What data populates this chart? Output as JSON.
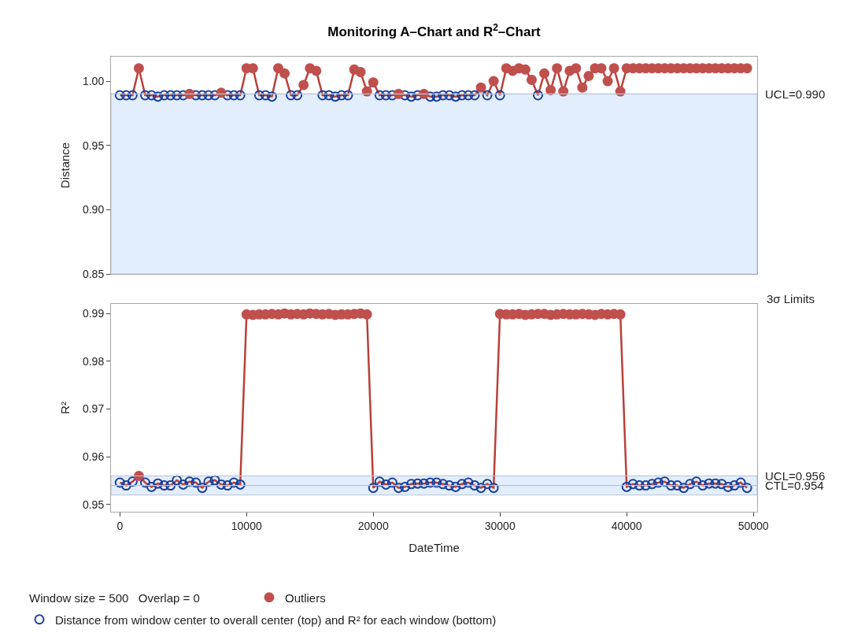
{
  "chart_data": [
    {
      "type": "line",
      "title": "Monitoring A–Chart and R$^{2}$–Chart",
      "ylabel": "Distance",
      "tick_labels": "y",
      "xlim": [
        -700,
        50300
      ],
      "ylim": [
        0.85,
        1.019
      ],
      "yticks": [
        {
          "value": 0.85,
          "label": "0.85"
        },
        {
          "value": 0.9,
          "label": "0.90"
        },
        {
          "value": 0.95,
          "label": "0.95"
        },
        {
          "value": 1.0,
          "label": "1.00"
        }
      ],
      "x": [
        0,
        500,
        1000,
        1500,
        2000,
        2500,
        3000,
        3500,
        4000,
        4500,
        5000,
        5500,
        6000,
        6500,
        7000,
        7500,
        8000,
        8500,
        9000,
        9500,
        10000,
        10500,
        11000,
        11500,
        12000,
        12500,
        13000,
        13500,
        14000,
        14500,
        15000,
        15500,
        16000,
        16500,
        17000,
        17500,
        18000,
        18500,
        19000,
        19500,
        20000,
        20500,
        21000,
        21500,
        22000,
        22500,
        23000,
        23500,
        24000,
        24500,
        25000,
        25500,
        26000,
        26500,
        27000,
        27500,
        28000,
        28500,
        29000,
        29500,
        30000,
        30500,
        31000,
        31500,
        32000,
        32500,
        33000,
        33500,
        34000,
        34500,
        35000,
        35500,
        36000,
        36500,
        37000,
        37500,
        38000,
        38500,
        39000,
        39500,
        40000,
        40500,
        41000,
        41500,
        42000,
        42500,
        43000,
        43500,
        44000,
        44500,
        45000,
        45500,
        46000,
        46500,
        47000,
        47500,
        48000,
        48500,
        49000,
        49500
      ],
      "bands": [
        {
          "axis": "y",
          "from": 0.85,
          "to": 0.99,
          "color": "#e3eefc"
        }
      ],
      "ref_lines": [
        {
          "axis": "y",
          "value": 0.99,
          "label": "UCL=0.990",
          "color": "#b7c4d6"
        }
      ],
      "series": [
        {
          "color": "#b8403a",
          "marker": "none",
          "values": [
            0.989,
            0.989,
            0.989,
            1.01,
            0.989,
            0.989,
            0.988,
            0.989,
            0.989,
            0.989,
            0.989,
            0.99,
            0.989,
            0.989,
            0.989,
            0.989,
            0.991,
            0.989,
            0.989,
            0.989,
            1.01,
            1.01,
            0.989,
            0.989,
            0.988,
            1.01,
            1.006,
            0.989,
            0.989,
            0.997,
            1.01,
            1.008,
            0.989,
            0.989,
            0.988,
            0.989,
            0.989,
            1.009,
            1.007,
            0.992,
            0.999,
            0.989,
            0.989,
            0.989,
            0.99,
            0.989,
            0.988,
            0.989,
            0.99,
            0.988,
            0.988,
            0.989,
            0.989,
            0.988,
            0.989,
            0.989,
            0.989,
            0.995,
            0.989,
            1.0,
            0.989,
            1.01,
            1.008,
            1.01,
            1.009,
            1.001,
            0.989,
            1.006,
            0.993,
            1.01,
            0.992,
            1.008,
            1.01,
            0.995,
            1.004,
            1.01,
            1.01,
            1.0,
            1.01,
            0.992,
            1.01,
            1.01,
            1.01,
            1.01,
            1.01,
            1.01,
            1.01,
            1.01,
            1.01,
            1.01,
            1.01,
            1.01,
            1.01,
            1.01,
            1.01,
            1.01,
            1.01,
            1.01,
            1.01,
            1.01
          ]
        },
        {
          "type": "scatter",
          "color": "#1a3f9c",
          "marker": "circle-open",
          "values": [
            0.989,
            0.989,
            0.989,
            null,
            0.989,
            0.989,
            0.988,
            0.989,
            0.989,
            0.989,
            0.989,
            null,
            0.989,
            0.989,
            0.989,
            0.989,
            null,
            0.989,
            0.989,
            0.989,
            null,
            null,
            0.989,
            0.989,
            0.988,
            null,
            null,
            0.989,
            0.989,
            null,
            null,
            null,
            0.989,
            0.989,
            0.988,
            0.989,
            0.989,
            null,
            null,
            null,
            null,
            0.989,
            0.989,
            0.989,
            null,
            0.989,
            0.988,
            0.989,
            null,
            0.988,
            0.988,
            0.989,
            0.989,
            0.988,
            0.989,
            0.989,
            0.989,
            null,
            0.989,
            null,
            0.989,
            null,
            null,
            null,
            null,
            null,
            0.989,
            null,
            null,
            null,
            null,
            null,
            null,
            null,
            null,
            null,
            null,
            null,
            null,
            null,
            null,
            null,
            null,
            null,
            null,
            null,
            null,
            null,
            null,
            null,
            null,
            null,
            null,
            null,
            null,
            null,
            null,
            null,
            null,
            null
          ]
        },
        {
          "type": "scatter",
          "color": "#c0504d",
          "marker": "circle",
          "values": [
            null,
            null,
            null,
            1.01,
            null,
            null,
            null,
            null,
            null,
            null,
            null,
            0.99,
            null,
            null,
            null,
            null,
            0.991,
            null,
            null,
            null,
            1.01,
            1.01,
            null,
            null,
            null,
            1.01,
            1.006,
            null,
            null,
            0.997,
            1.01,
            1.008,
            null,
            null,
            null,
            null,
            null,
            1.009,
            1.007,
            0.992,
            0.999,
            null,
            null,
            null,
            0.99,
            null,
            null,
            null,
            0.99,
            null,
            null,
            null,
            null,
            null,
            null,
            null,
            null,
            0.995,
            null,
            1.0,
            null,
            1.01,
            1.008,
            1.01,
            1.009,
            1.001,
            null,
            1.006,
            0.993,
            1.01,
            0.992,
            1.008,
            1.01,
            0.995,
            1.004,
            1.01,
            1.01,
            1.0,
            1.01,
            0.992,
            1.01,
            1.01,
            1.01,
            1.01,
            1.01,
            1.01,
            1.01,
            1.01,
            1.01,
            1.01,
            1.01,
            1.01,
            1.01,
            1.01,
            1.01,
            1.01,
            1.01,
            1.01,
            1.01,
            1.01
          ]
        }
      ]
    },
    {
      "type": "line",
      "xlabel": "DateTime",
      "ylabel": "R²",
      "legend": "bottom",
      "xlim": [
        -700,
        50300
      ],
      "ylim": [
        0.9485,
        0.992
      ],
      "xticks": [
        0,
        10000,
        20000,
        30000,
        40000,
        50000
      ],
      "yticks": [
        0.95,
        0.96,
        0.97,
        0.98,
        0.99
      ],
      "x": [
        0,
        500,
        1000,
        1500,
        2000,
        2500,
        3000,
        3500,
        4000,
        4500,
        5000,
        5500,
        6000,
        6500,
        7000,
        7500,
        8000,
        8500,
        9000,
        9500,
        10000,
        10500,
        11000,
        11500,
        12000,
        12500,
        13000,
        13500,
        14000,
        14500,
        15000,
        15500,
        16000,
        16500,
        17000,
        17500,
        18000,
        18500,
        19000,
        19500,
        20000,
        20500,
        21000,
        21500,
        22000,
        22500,
        23000,
        23500,
        24000,
        24500,
        25000,
        25500,
        26000,
        26500,
        27000,
        27500,
        28000,
        28500,
        29000,
        29500,
        30000,
        30500,
        31000,
        31500,
        32000,
        32500,
        33000,
        33500,
        34000,
        34500,
        35000,
        35500,
        36000,
        36500,
        37000,
        37500,
        38000,
        38500,
        39000,
        39500,
        40000,
        40500,
        41000,
        41500,
        42000,
        42500,
        43000,
        43500,
        44000,
        44500,
        45000,
        45500,
        46000,
        46500,
        47000,
        47500,
        48000,
        48500,
        49000,
        49500
      ],
      "bands": [
        {
          "axis": "y",
          "from": 0.952,
          "to": 0.956,
          "color": "#e3eefc"
        }
      ],
      "ref_lines": [
        {
          "axis": "y",
          "value": 0.956,
          "label": "UCL=0.956",
          "color": "#b7c4d6"
        },
        {
          "axis": "y",
          "value": 0.954,
          "label": "CTL=0.954",
          "color": "#b7c4d6"
        }
      ],
      "annotations": [
        "3σ Limits",
        "Window size = 500   Overlap = 0"
      ],
      "series": [
        {
          "color": "#b8403a",
          "marker": "none",
          "values": [
            0.9546,
            0.954,
            0.9548,
            0.956,
            0.9546,
            0.9537,
            0.9544,
            0.954,
            0.954,
            0.9551,
            0.9542,
            0.9548,
            0.9546,
            0.9535,
            0.9548,
            0.9551,
            0.9542,
            0.954,
            0.9546,
            0.9542,
            0.9898,
            0.9897,
            0.9898,
            0.9898,
            0.9899,
            0.9898,
            0.99,
            0.9898,
            0.9899,
            0.9898,
            0.99,
            0.9899,
            0.9898,
            0.9899,
            0.9897,
            0.9898,
            0.9898,
            0.9899,
            0.99,
            0.9898,
            0.9535,
            0.9548,
            0.9542,
            0.9546,
            0.9535,
            0.9537,
            0.9543,
            0.9544,
            0.9544,
            0.9546,
            0.9546,
            0.9543,
            0.954,
            0.9537,
            0.9543,
            0.9546,
            0.954,
            0.9535,
            0.9543,
            0.9535,
            0.9899,
            0.9898,
            0.9898,
            0.9899,
            0.9897,
            0.9898,
            0.9899,
            0.9899,
            0.9897,
            0.9898,
            0.9899,
            0.9898,
            0.9898,
            0.9899,
            0.9898,
            0.9897,
            0.9899,
            0.9898,
            0.9899,
            0.9898,
            0.9537,
            0.9543,
            0.954,
            0.954,
            0.9543,
            0.9546,
            0.9548,
            0.954,
            0.954,
            0.9535,
            0.9543,
            0.9548,
            0.954,
            0.9544,
            0.9544,
            0.9543,
            0.9537,
            0.954,
            0.9546,
            0.9535
          ]
        },
        {
          "type": "scatter",
          "name": "Distance from window center to overall center (top) and R² for each window (bottom)",
          "color": "#1a3f9c",
          "marker": "circle-open",
          "values": [
            0.9546,
            0.954,
            0.9548,
            null,
            0.9546,
            0.9537,
            0.9544,
            0.954,
            0.954,
            0.9551,
            0.9542,
            0.9548,
            0.9546,
            0.9535,
            0.9548,
            0.9551,
            0.9542,
            0.954,
            0.9546,
            0.9542,
            null,
            null,
            null,
            null,
            null,
            null,
            null,
            null,
            null,
            null,
            null,
            null,
            null,
            null,
            null,
            null,
            null,
            null,
            null,
            null,
            0.9535,
            0.9548,
            0.9542,
            0.9546,
            0.9535,
            0.9537,
            0.9543,
            0.9544,
            0.9544,
            0.9546,
            0.9546,
            0.9543,
            0.954,
            0.9537,
            0.9543,
            0.9546,
            0.954,
            0.9535,
            0.9543,
            0.9535,
            null,
            null,
            null,
            null,
            null,
            null,
            null,
            null,
            null,
            null,
            null,
            null,
            null,
            null,
            null,
            null,
            null,
            null,
            null,
            null,
            0.9537,
            0.9543,
            0.954,
            0.954,
            0.9543,
            0.9546,
            0.9548,
            0.954,
            0.954,
            0.9535,
            0.9543,
            0.9548,
            0.954,
            0.9544,
            0.9544,
            0.9543,
            0.9537,
            0.954,
            0.9546,
            0.9535
          ]
        },
        {
          "type": "scatter",
          "name": "Outliers",
          "color": "#c0504d",
          "marker": "circle",
          "values": [
            null,
            null,
            null,
            0.956,
            null,
            null,
            null,
            null,
            null,
            null,
            null,
            null,
            null,
            null,
            null,
            null,
            null,
            null,
            null,
            null,
            0.9898,
            0.9897,
            0.9898,
            0.9898,
            0.9899,
            0.9898,
            0.99,
            0.9898,
            0.9899,
            0.9898,
            0.99,
            0.9899,
            0.9898,
            0.9899,
            0.9897,
            0.9898,
            0.9898,
            0.9899,
            0.99,
            0.9898,
            null,
            null,
            null,
            null,
            null,
            null,
            null,
            null,
            null,
            null,
            null,
            null,
            null,
            null,
            null,
            null,
            null,
            null,
            null,
            null,
            0.9899,
            0.9898,
            0.9898,
            0.9899,
            0.9897,
            0.9898,
            0.9899,
            0.9899,
            0.9897,
            0.9898,
            0.9899,
            0.9898,
            0.9898,
            0.9899,
            0.9898,
            0.9897,
            0.9899,
            0.9898,
            0.9899,
            0.9898,
            null,
            null,
            null,
            null,
            null,
            null,
            null,
            null,
            null,
            null,
            null,
            null,
            null,
            null,
            null,
            null,
            null,
            null,
            null,
            null
          ]
        }
      ]
    }
  ]
}
